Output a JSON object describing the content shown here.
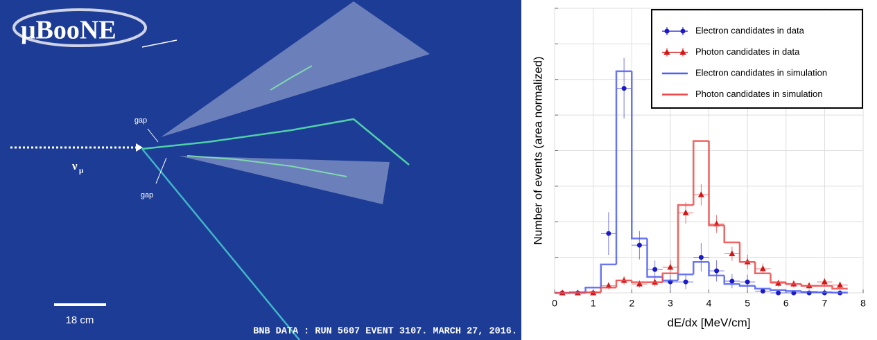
{
  "event_display": {
    "logo": "μBooNE",
    "gap_upper": "gap",
    "gap_lower": "gap",
    "neutrino": "ν",
    "neutrino_sub": "μ",
    "scale": "18 cm",
    "caption": "BNB DATA : RUN 5607 EVENT 3107. MARCH 27, 2016."
  },
  "chart_data": {
    "type": "histogram",
    "xlabel": "dE/dx [MeV/cm]",
    "ylabel": "Number of events (area normalized)",
    "xlim": [
      0,
      8
    ],
    "xticks": [
      0,
      1,
      2,
      3,
      4,
      5,
      6,
      7,
      8
    ],
    "ylim": [
      0,
      8
    ],
    "yticks": [
      0,
      1,
      2,
      3,
      4,
      5,
      6,
      7,
      8
    ],
    "grid": true,
    "legend": "upper right",
    "bins": [
      0,
      0.4,
      0.8,
      1.2,
      1.6,
      2.0,
      2.4,
      2.8,
      3.2,
      3.6,
      4.0,
      4.4,
      4.8,
      5.2,
      5.6,
      6.0,
      6.4,
      6.8,
      7.2,
      7.6
    ],
    "series": [
      {
        "name": "Electron candidates in data",
        "color": "#1a1ac8",
        "marker": "circle",
        "x": [
          0.2,
          0.6,
          1.0,
          1.4,
          1.8,
          2.2,
          2.6,
          3.0,
          3.4,
          3.8,
          4.2,
          4.6,
          5.0,
          5.4,
          5.8,
          6.2,
          6.6,
          7.0,
          7.4
        ],
        "values": [
          0,
          0,
          0,
          1.67,
          5.75,
          1.34,
          0.66,
          0.31,
          0.31,
          1.0,
          0.62,
          0.33,
          0.31,
          0.05,
          0,
          0,
          0,
          0,
          0
        ],
        "errors": [
          0,
          0,
          0,
          0.6,
          0.85,
          0.4,
          0.25,
          0.2,
          0.2,
          0.4,
          0.3,
          0.2,
          0.2,
          0.05,
          0,
          0,
          0,
          0,
          0
        ]
      },
      {
        "name": "Photon candidates in data",
        "color": "#d01818",
        "marker": "triangle",
        "x": [
          0.2,
          0.6,
          1.0,
          1.4,
          1.8,
          2.2,
          2.6,
          3.0,
          3.4,
          3.8,
          4.2,
          4.6,
          5.0,
          5.4,
          5.8,
          6.2,
          6.6,
          7.0,
          7.4
        ],
        "values": [
          0,
          0,
          0,
          0.2,
          0.35,
          0.25,
          0.3,
          0.72,
          2.25,
          2.76,
          1.94,
          1.1,
          0.87,
          0.68,
          0.27,
          0.25,
          0.2,
          0.31,
          0.22
        ],
        "errors": [
          0,
          0,
          0,
          0.1,
          0.12,
          0.1,
          0.12,
          0.2,
          0.3,
          0.3,
          0.25,
          0.2,
          0.2,
          0.15,
          0.1,
          0.1,
          0.1,
          0.1,
          0.1
        ]
      },
      {
        "name": "Electron candidates in simulation",
        "color": "#4f5ff2",
        "drawstyle": "steps",
        "values": [
          0,
          0.02,
          0.15,
          0.8,
          6.23,
          1.53,
          0.45,
          0.35,
          0.52,
          0.87,
          0.49,
          0.25,
          0.2,
          0.12,
          0.08,
          0.05,
          0.03,
          0.02,
          0.01
        ]
      },
      {
        "name": "Photon candidates in simulation",
        "color": "#f04848",
        "drawstyle": "steps",
        "values": [
          0,
          0,
          0.02,
          0.15,
          0.35,
          0.3,
          0.3,
          0.55,
          2.47,
          4.27,
          1.9,
          1.42,
          0.87,
          0.55,
          0.3,
          0.25,
          0.2,
          0.2,
          0.12
        ]
      }
    ]
  }
}
